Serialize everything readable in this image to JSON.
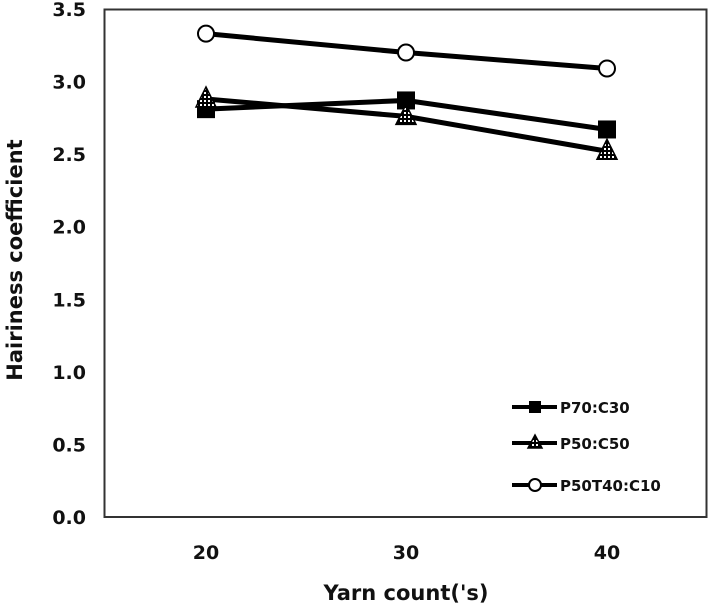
{
  "chart_data": {
    "type": "line",
    "title": "",
    "xlabel": "Yarn count('s)",
    "ylabel": "Hairiness coefficient",
    "categories": [
      "20",
      "30",
      "40"
    ],
    "x": [
      20,
      30,
      40
    ],
    "ylim": [
      0.0,
      3.5
    ],
    "yticks": [
      "0.0",
      "0.5",
      "1.0",
      "1.5",
      "2.0",
      "2.5",
      "3.0",
      "3.5"
    ],
    "grid": false,
    "legend_position": "lower right (inside)",
    "series": [
      {
        "name": "P70:C30",
        "marker": "filled-square",
        "values": [
          2.81,
          2.87,
          2.67
        ]
      },
      {
        "name": "P50:C50",
        "marker": "hatched-triangle",
        "values": [
          2.88,
          2.76,
          2.52
        ]
      },
      {
        "name": "P50T40:C10",
        "marker": "open-circle",
        "values": [
          3.33,
          3.2,
          3.09
        ]
      }
    ]
  },
  "colors": {
    "line": "#000000",
    "frame": "#333333",
    "background": "#ffffff"
  }
}
